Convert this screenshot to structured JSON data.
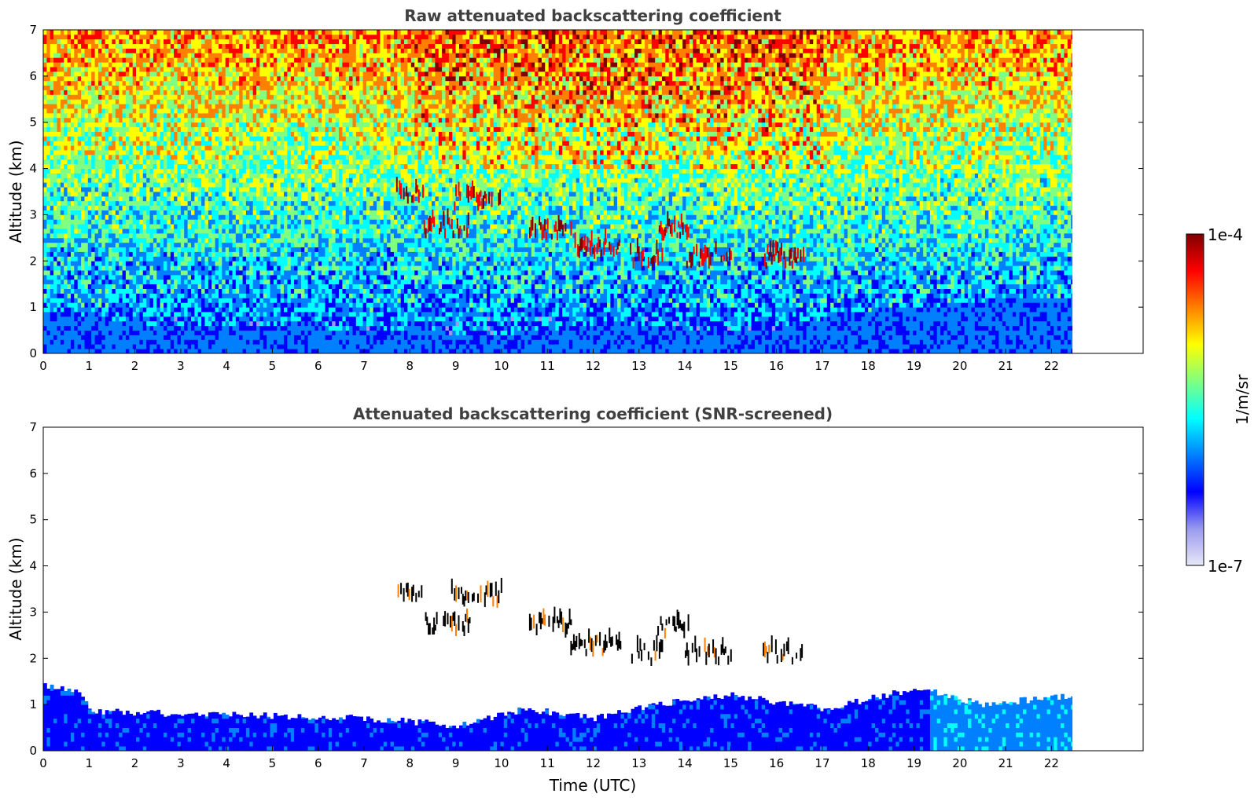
{
  "chart_data": [
    {
      "type": "heatmap",
      "title": "Raw attenuated backscattering coefficient",
      "xlabel": "",
      "ylabel": "Altitude (km)",
      "xlim": [
        0,
        24
      ],
      "ylim": [
        0,
        7
      ],
      "xticks": [
        "0",
        "1",
        "2",
        "3",
        "4",
        "5",
        "6",
        "7",
        "8",
        "9",
        "10",
        "11",
        "12",
        "13",
        "14",
        "15",
        "16",
        "17",
        "18",
        "19",
        "20",
        "21",
        "22"
      ],
      "yticks": [
        "0",
        "1",
        "2",
        "3",
        "4",
        "5",
        "6",
        "7"
      ],
      "data_end_time": 22.45,
      "grid": false,
      "boundary_layer_top_km": [
        [
          0,
          0.75
        ],
        [
          2,
          0.6
        ],
        [
          4,
          0.55
        ],
        [
          6,
          0.5
        ],
        [
          8,
          0.45
        ],
        [
          9.5,
          0.35
        ],
        [
          11,
          0.45
        ],
        [
          12.5,
          0.55
        ],
        [
          14,
          0.5
        ],
        [
          16,
          0.5
        ],
        [
          18,
          0.9
        ],
        [
          19.5,
          1.0
        ],
        [
          20.5,
          1.1
        ],
        [
          22.45,
          1.2
        ]
      ],
      "cloud_layers": [
        {
          "t_start": 7.7,
          "t_end": 8.3,
          "alt_km": 3.35
        },
        {
          "t_start": 8.3,
          "t_end": 9.3,
          "alt_km": 2.65
        },
        {
          "t_start": 8.9,
          "t_end": 10.0,
          "alt_km": 3.25
        },
        {
          "t_start": 10.6,
          "t_end": 11.5,
          "alt_km": 2.6
        },
        {
          "t_start": 11.5,
          "t_end": 12.6,
          "alt_km": 2.2
        },
        {
          "t_start": 12.8,
          "t_end": 13.5,
          "alt_km": 2.0
        },
        {
          "t_start": 13.4,
          "t_end": 14.1,
          "alt_km": 2.6
        },
        {
          "t_start": 14.0,
          "t_end": 15.0,
          "alt_km": 2.0
        },
        {
          "t_start": 15.7,
          "t_end": 16.6,
          "alt_km": 2.0
        }
      ]
    },
    {
      "type": "heatmap",
      "title": "Attenuated backscattering coefficient (SNR-screened)",
      "xlabel": "Time (UTC)",
      "ylabel": "Altitude (km)",
      "xlim": [
        0,
        24
      ],
      "ylim": [
        0,
        7
      ],
      "xticks": [
        "0",
        "1",
        "2",
        "3",
        "4",
        "5",
        "6",
        "7",
        "8",
        "9",
        "10",
        "11",
        "12",
        "13",
        "14",
        "15",
        "16",
        "17",
        "18",
        "19",
        "20",
        "21",
        "22"
      ],
      "yticks": [
        "0",
        "1",
        "2",
        "3",
        "4",
        "5",
        "6",
        "7"
      ],
      "data_end_time": 22.45,
      "grid": false,
      "screened_layer_top_km": [
        [
          0,
          1.4
        ],
        [
          0.8,
          1.25
        ],
        [
          1.0,
          0.85
        ],
        [
          3,
          0.8
        ],
        [
          5,
          0.75
        ],
        [
          7,
          0.7
        ],
        [
          9,
          0.55
        ],
        [
          10.5,
          0.9
        ],
        [
          12,
          0.7
        ],
        [
          13,
          0.95
        ],
        [
          15,
          1.2
        ],
        [
          17,
          0.9
        ],
        [
          19,
          1.35
        ],
        [
          20.5,
          1.0
        ],
        [
          22.45,
          1.2
        ]
      ],
      "cloud_layers": [
        {
          "t_start": 7.7,
          "t_end": 8.3,
          "alt_km": 3.35
        },
        {
          "t_start": 8.3,
          "t_end": 9.3,
          "alt_km": 2.65
        },
        {
          "t_start": 8.9,
          "t_end": 10.0,
          "alt_km": 3.25
        },
        {
          "t_start": 10.6,
          "t_end": 11.5,
          "alt_km": 2.6
        },
        {
          "t_start": 11.5,
          "t_end": 12.6,
          "alt_km": 2.2
        },
        {
          "t_start": 12.8,
          "t_end": 13.5,
          "alt_km": 2.0
        },
        {
          "t_start": 13.4,
          "t_end": 14.1,
          "alt_km": 2.6
        },
        {
          "t_start": 14.0,
          "t_end": 15.0,
          "alt_km": 2.0
        },
        {
          "t_start": 15.7,
          "t_end": 16.6,
          "alt_km": 2.0
        }
      ]
    }
  ],
  "colorbar": {
    "max_label": "1e-4",
    "min_label": "1e-7",
    "unit_label": "1/m/sr",
    "colormap": "jet",
    "colors": [
      "#e8e8f8",
      "#9999ee",
      "#0000ff",
      "#0080ff",
      "#00ffff",
      "#80ff80",
      "#ffff00",
      "#ff8000",
      "#ff0000",
      "#800000"
    ]
  }
}
